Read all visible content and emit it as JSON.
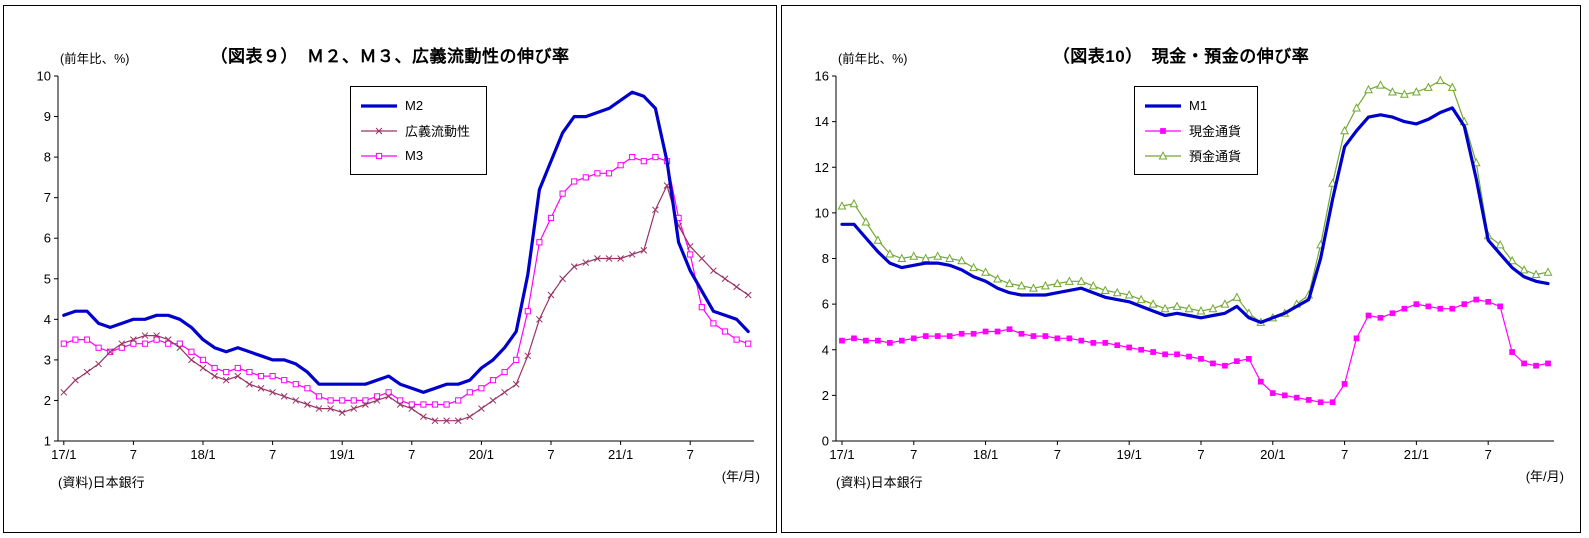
{
  "chart_data": [
    {
      "type": "line",
      "title": "（図表９）　Ｍ２、Ｍ３、広義流動性の伸び率",
      "unit_label": "(前年比、%)",
      "x_unit_label": "(年/月)",
      "source": "(資料)日本銀行",
      "ylim": [
        1,
        10
      ],
      "ytick_step": 1,
      "n_points": 60,
      "x_tick_labels": [
        "17/1",
        "7",
        "18/1",
        "7",
        "19/1",
        "7",
        "20/1",
        "7",
        "21/1",
        "7"
      ],
      "x_tick_positions": [
        0,
        6,
        12,
        18,
        24,
        30,
        36,
        42,
        48,
        54
      ],
      "legend_position": "top-center",
      "grid": false,
      "series": [
        {
          "name": "M2",
          "color": "#0000CC",
          "width": 3.2,
          "marker": "none",
          "values": [
            4.1,
            4.2,
            4.2,
            3.9,
            3.8,
            3.9,
            4.0,
            4.0,
            4.1,
            4.1,
            4.0,
            3.8,
            3.5,
            3.3,
            3.2,
            3.3,
            3.2,
            3.1,
            3.0,
            3.0,
            2.9,
            2.7,
            2.4,
            2.4,
            2.4,
            2.4,
            2.4,
            2.5,
            2.6,
            2.4,
            2.3,
            2.2,
            2.3,
            2.4,
            2.4,
            2.5,
            2.8,
            3.0,
            3.3,
            3.7,
            5.1,
            7.2,
            7.9,
            8.6,
            9.0,
            9.0,
            9.1,
            9.2,
            9.4,
            9.6,
            9.5,
            9.2,
            7.9,
            5.9,
            5.2,
            4.7,
            4.2,
            4.1,
            4.0,
            3.7
          ]
        },
        {
          "name": "広義流動性",
          "color": "#993366",
          "width": 1.2,
          "marker": "x",
          "values": [
            2.2,
            2.5,
            2.7,
            2.9,
            3.2,
            3.4,
            3.5,
            3.6,
            3.6,
            3.5,
            3.3,
            3.0,
            2.8,
            2.6,
            2.5,
            2.6,
            2.4,
            2.3,
            2.2,
            2.1,
            2.0,
            1.9,
            1.8,
            1.8,
            1.7,
            1.8,
            1.9,
            2.0,
            2.1,
            1.9,
            1.8,
            1.6,
            1.5,
            1.5,
            1.5,
            1.6,
            1.8,
            2.0,
            2.2,
            2.4,
            3.1,
            4.0,
            4.6,
            5.0,
            5.3,
            5.4,
            5.5,
            5.5,
            5.5,
            5.6,
            5.7,
            6.7,
            7.3,
            6.3,
            5.8,
            5.5,
            5.2,
            5.0,
            4.8,
            4.6
          ]
        },
        {
          "name": "M3",
          "color": "#FF00FF",
          "width": 1.2,
          "marker": "square-open",
          "values": [
            3.4,
            3.5,
            3.5,
            3.3,
            3.2,
            3.3,
            3.4,
            3.4,
            3.5,
            3.4,
            3.4,
            3.2,
            3.0,
            2.8,
            2.7,
            2.8,
            2.7,
            2.6,
            2.6,
            2.5,
            2.4,
            2.3,
            2.1,
            2.0,
            2.0,
            2.0,
            2.0,
            2.1,
            2.2,
            2.0,
            1.9,
            1.9,
            1.9,
            1.9,
            2.0,
            2.2,
            2.3,
            2.5,
            2.7,
            3.0,
            4.2,
            5.9,
            6.5,
            7.1,
            7.4,
            7.5,
            7.6,
            7.6,
            7.8,
            8.0,
            7.9,
            8.0,
            7.9,
            6.5,
            5.6,
            4.3,
            3.9,
            3.7,
            3.5,
            3.4
          ]
        }
      ]
    },
    {
      "type": "line",
      "title": "（図表10）　現金・預金の伸び率",
      "unit_label": "(前年比、%)",
      "x_unit_label": "(年/月)",
      "source": "(資料)日本銀行",
      "ylim": [
        0,
        16
      ],
      "ytick_step": 2,
      "n_points": 60,
      "x_tick_labels": [
        "17/1",
        "7",
        "18/1",
        "7",
        "19/1",
        "7",
        "20/1",
        "7",
        "21/1",
        "7"
      ],
      "x_tick_positions": [
        0,
        6,
        12,
        18,
        24,
        30,
        36,
        42,
        48,
        54
      ],
      "legend_position": "top-center",
      "grid": false,
      "series": [
        {
          "name": "M1",
          "color": "#0000CC",
          "width": 3.2,
          "marker": "none",
          "values": [
            9.5,
            9.5,
            8.9,
            8.3,
            7.8,
            7.6,
            7.7,
            7.8,
            7.8,
            7.7,
            7.5,
            7.2,
            7.0,
            6.7,
            6.5,
            6.4,
            6.4,
            6.4,
            6.5,
            6.6,
            6.7,
            6.5,
            6.3,
            6.2,
            6.1,
            5.9,
            5.7,
            5.5,
            5.6,
            5.5,
            5.4,
            5.5,
            5.6,
            5.9,
            5.4,
            5.2,
            5.4,
            5.6,
            5.9,
            6.2,
            8.0,
            10.6,
            12.9,
            13.6,
            14.2,
            14.3,
            14.2,
            14.0,
            13.9,
            14.1,
            14.4,
            14.6,
            13.8,
            11.5,
            8.8,
            8.2,
            7.6,
            7.2,
            7.0,
            6.9
          ]
        },
        {
          "name": "現金通貨",
          "color": "#FF00FF",
          "width": 1.2,
          "marker": "square-filled",
          "values": [
            4.4,
            4.5,
            4.4,
            4.4,
            4.3,
            4.4,
            4.5,
            4.6,
            4.6,
            4.6,
            4.7,
            4.7,
            4.8,
            4.8,
            4.9,
            4.7,
            4.6,
            4.6,
            4.5,
            4.5,
            4.4,
            4.3,
            4.3,
            4.2,
            4.1,
            4.0,
            3.9,
            3.8,
            3.8,
            3.7,
            3.6,
            3.4,
            3.3,
            3.5,
            3.6,
            2.6,
            2.1,
            2.0,
            1.9,
            1.8,
            1.7,
            1.7,
            2.5,
            4.5,
            5.5,
            5.4,
            5.6,
            5.8,
            6.0,
            5.9,
            5.8,
            5.8,
            6.0,
            6.2,
            6.1,
            5.9,
            3.9,
            3.4,
            3.3,
            3.4
          ]
        },
        {
          "name": "預金通貨",
          "color": "#70A830",
          "width": 1.2,
          "marker": "triangle-open",
          "values": [
            10.3,
            10.4,
            9.6,
            8.8,
            8.2,
            8.0,
            8.1,
            8.0,
            8.1,
            8.0,
            7.9,
            7.6,
            7.4,
            7.1,
            6.9,
            6.8,
            6.7,
            6.8,
            6.9,
            7.0,
            7.0,
            6.8,
            6.6,
            6.5,
            6.4,
            6.2,
            6.0,
            5.8,
            5.9,
            5.8,
            5.7,
            5.8,
            6.0,
            6.3,
            5.6,
            5.2,
            5.4,
            5.6,
            6.0,
            6.4,
            8.6,
            11.3,
            13.6,
            14.6,
            15.4,
            15.6,
            15.3,
            15.2,
            15.3,
            15.5,
            15.8,
            15.5,
            14.0,
            12.2,
            9.0,
            8.6,
            7.9,
            7.5,
            7.3,
            7.4
          ]
        }
      ]
    }
  ]
}
